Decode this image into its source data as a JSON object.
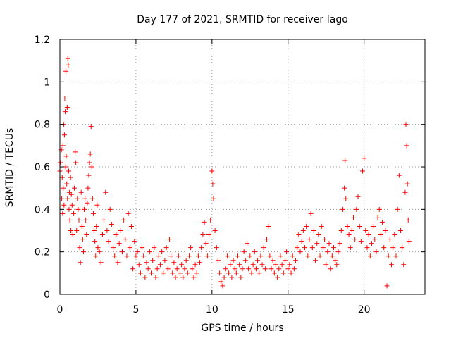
{
  "chart_data": {
    "type": "scatter",
    "title": "Day 177 of 2021, SRMTID for receiver Iago",
    "xlabel": "GPS time / hours",
    "ylabel": "SRMTID / TECUs",
    "xlim": [
      0,
      24
    ],
    "ylim": [
      0,
      1.2
    ],
    "x_ticks": [
      0,
      5,
      10,
      15,
      20
    ],
    "x_tick_labels": [
      "0",
      "5",
      "10",
      "15",
      "20"
    ],
    "y_ticks": [
      0,
      0.2,
      0.4,
      0.6,
      0.8,
      1,
      1.2
    ],
    "y_tick_labels": [
      "0",
      "0.2",
      "0.4",
      "0.6",
      "0.8",
      "1",
      "1.2"
    ],
    "grid": true,
    "marker": "plus",
    "series_color": "#ff0000",
    "series": [
      {
        "name": "SRMTID",
        "points": [
          [
            0.0,
            0.58
          ],
          [
            0.05,
            0.62
          ],
          [
            0.1,
            0.68
          ],
          [
            0.12,
            0.45
          ],
          [
            0.15,
            0.55
          ],
          [
            0.18,
            0.38
          ],
          [
            0.2,
            0.7
          ],
          [
            0.22,
            0.5
          ],
          [
            0.25,
            0.8
          ],
          [
            0.27,
            0.42
          ],
          [
            0.3,
            0.75
          ],
          [
            0.32,
            0.92
          ],
          [
            0.35,
            0.86
          ],
          [
            0.38,
            0.6
          ],
          [
            0.4,
            1.05
          ],
          [
            0.42,
            0.65
          ],
          [
            0.45,
            0.52
          ],
          [
            0.48,
            0.88
          ],
          [
            0.5,
            0.45
          ],
          [
            0.52,
            1.11
          ],
          [
            0.55,
            1.08
          ],
          [
            0.58,
            0.58
          ],
          [
            0.6,
            0.4
          ],
          [
            0.62,
            0.48
          ],
          [
            0.65,
            0.35
          ],
          [
            0.7,
            0.55
          ],
          [
            0.72,
            0.3
          ],
          [
            0.75,
            0.47
          ],
          [
            0.8,
            0.42
          ],
          [
            0.85,
            0.28
          ],
          [
            0.9,
            0.38
          ],
          [
            0.95,
            0.5
          ],
          [
            1.0,
            0.67
          ],
          [
            1.05,
            0.62
          ],
          [
            1.1,
            0.3
          ],
          [
            1.15,
            0.45
          ],
          [
            1.2,
            0.4
          ],
          [
            1.25,
            0.35
          ],
          [
            1.3,
            0.22
          ],
          [
            1.35,
            0.15
          ],
          [
            1.4,
            0.48
          ],
          [
            1.45,
            0.32
          ],
          [
            1.5,
            0.26
          ],
          [
            1.55,
            0.2
          ],
          [
            1.6,
            0.4
          ],
          [
            1.65,
            0.45
          ],
          [
            1.7,
            0.35
          ],
          [
            1.75,
            0.28
          ],
          [
            1.8,
            0.43
          ],
          [
            1.85,
            0.5
          ],
          [
            1.9,
            0.56
          ],
          [
            1.95,
            0.62
          ],
          [
            2.0,
            0.66
          ],
          [
            2.05,
            0.79
          ],
          [
            2.1,
            0.6
          ],
          [
            2.15,
            0.45
          ],
          [
            2.2,
            0.38
          ],
          [
            2.25,
            0.3
          ],
          [
            2.3,
            0.25
          ],
          [
            2.35,
            0.18
          ],
          [
            2.4,
            0.32
          ],
          [
            2.45,
            0.42
          ],
          [
            2.5,
            0.22
          ],
          [
            2.6,
            0.2
          ],
          [
            2.7,
            0.15
          ],
          [
            2.8,
            0.28
          ],
          [
            2.9,
            0.35
          ],
          [
            3.0,
            0.48
          ],
          [
            3.1,
            0.3
          ],
          [
            3.2,
            0.25
          ],
          [
            3.3,
            0.4
          ],
          [
            3.4,
            0.33
          ],
          [
            3.5,
            0.22
          ],
          [
            3.6,
            0.18
          ],
          [
            3.7,
            0.28
          ],
          [
            3.8,
            0.15
          ],
          [
            3.9,
            0.24
          ],
          [
            4.0,
            0.3
          ],
          [
            4.1,
            0.2
          ],
          [
            4.2,
            0.35
          ],
          [
            4.3,
            0.26
          ],
          [
            4.4,
            0.18
          ],
          [
            4.5,
            0.38
          ],
          [
            4.6,
            0.22
          ],
          [
            4.7,
            0.32
          ],
          [
            4.8,
            0.12
          ],
          [
            4.9,
            0.25
          ],
          [
            5.0,
            0.18
          ],
          [
            5.1,
            0.2
          ],
          [
            5.2,
            0.14
          ],
          [
            5.3,
            0.1
          ],
          [
            5.4,
            0.22
          ],
          [
            5.5,
            0.18
          ],
          [
            5.6,
            0.08
          ],
          [
            5.7,
            0.15
          ],
          [
            5.8,
            0.12
          ],
          [
            5.9,
            0.2
          ],
          [
            6.0,
            0.1
          ],
          [
            6.1,
            0.16
          ],
          [
            6.2,
            0.22
          ],
          [
            6.3,
            0.08
          ],
          [
            6.4,
            0.12
          ],
          [
            6.5,
            0.18
          ],
          [
            6.6,
            0.14
          ],
          [
            6.7,
            0.2
          ],
          [
            6.8,
            0.1
          ],
          [
            6.9,
            0.16
          ],
          [
            7.0,
            0.22
          ],
          [
            7.1,
            0.12
          ],
          [
            7.2,
            0.26
          ],
          [
            7.3,
            0.18
          ],
          [
            7.4,
            0.1
          ],
          [
            7.5,
            0.15
          ],
          [
            7.6,
            0.08
          ],
          [
            7.7,
            0.12
          ],
          [
            7.8,
            0.18
          ],
          [
            7.9,
            0.1
          ],
          [
            8.0,
            0.14
          ],
          [
            8.1,
            0.08
          ],
          [
            8.2,
            0.12
          ],
          [
            8.3,
            0.16
          ],
          [
            8.4,
            0.1
          ],
          [
            8.5,
            0.18
          ],
          [
            8.6,
            0.22
          ],
          [
            8.7,
            0.12
          ],
          [
            8.8,
            0.08
          ],
          [
            8.9,
            0.14
          ],
          [
            9.0,
            0.1
          ],
          [
            9.1,
            0.18
          ],
          [
            9.2,
            0.15
          ],
          [
            9.3,
            0.22
          ],
          [
            9.4,
            0.28
          ],
          [
            9.5,
            0.34
          ],
          [
            9.6,
            0.24
          ],
          [
            9.7,
            0.18
          ],
          [
            9.8,
            0.28
          ],
          [
            9.9,
            0.35
          ],
          [
            10.0,
            0.58
          ],
          [
            10.05,
            0.52
          ],
          [
            10.1,
            0.45
          ],
          [
            10.2,
            0.3
          ],
          [
            10.3,
            0.22
          ],
          [
            10.4,
            0.16
          ],
          [
            10.5,
            0.1
          ],
          [
            10.6,
            0.06
          ],
          [
            10.7,
            0.04
          ],
          [
            10.8,
            0.08
          ],
          [
            10.9,
            0.12
          ],
          [
            11.0,
            0.18
          ],
          [
            11.1,
            0.1
          ],
          [
            11.2,
            0.14
          ],
          [
            11.3,
            0.08
          ],
          [
            11.4,
            0.16
          ],
          [
            11.5,
            0.12
          ],
          [
            11.6,
            0.1
          ],
          [
            11.7,
            0.18
          ],
          [
            11.8,
            0.14
          ],
          [
            11.9,
            0.08
          ],
          [
            12.0,
            0.12
          ],
          [
            12.1,
            0.2
          ],
          [
            12.2,
            0.16
          ],
          [
            12.3,
            0.24
          ],
          [
            12.4,
            0.12
          ],
          [
            12.5,
            0.18
          ],
          [
            12.6,
            0.1
          ],
          [
            12.7,
            0.14
          ],
          [
            12.8,
            0.2
          ],
          [
            12.9,
            0.12
          ],
          [
            13.0,
            0.16
          ],
          [
            13.1,
            0.1
          ],
          [
            13.2,
            0.18
          ],
          [
            13.3,
            0.14
          ],
          [
            13.4,
            0.22
          ],
          [
            13.5,
            0.12
          ],
          [
            13.6,
            0.26
          ],
          [
            13.7,
            0.32
          ],
          [
            13.8,
            0.18
          ],
          [
            13.9,
            0.12
          ],
          [
            14.0,
            0.16
          ],
          [
            14.1,
            0.1
          ],
          [
            14.2,
            0.14
          ],
          [
            14.3,
            0.08
          ],
          [
            14.4,
            0.12
          ],
          [
            14.5,
            0.18
          ],
          [
            14.6,
            0.14
          ],
          [
            14.7,
            0.1
          ],
          [
            14.8,
            0.16
          ],
          [
            14.9,
            0.2
          ],
          [
            15.0,
            0.12
          ],
          [
            15.1,
            0.14
          ],
          [
            15.2,
            0.1
          ],
          [
            15.3,
            0.18
          ],
          [
            15.4,
            0.12
          ],
          [
            15.5,
            0.16
          ],
          [
            15.6,
            0.22
          ],
          [
            15.7,
            0.28
          ],
          [
            15.8,
            0.2
          ],
          [
            15.9,
            0.25
          ],
          [
            16.0,
            0.3
          ],
          [
            16.1,
            0.22
          ],
          [
            16.2,
            0.32
          ],
          [
            16.3,
            0.18
          ],
          [
            16.4,
            0.26
          ],
          [
            16.5,
            0.38
          ],
          [
            16.6,
            0.22
          ],
          [
            16.7,
            0.3
          ],
          [
            16.8,
            0.16
          ],
          [
            16.9,
            0.24
          ],
          [
            17.0,
            0.28
          ],
          [
            17.1,
            0.18
          ],
          [
            17.2,
            0.32
          ],
          [
            17.3,
            0.22
          ],
          [
            17.4,
            0.26
          ],
          [
            17.5,
            0.14
          ],
          [
            17.6,
            0.2
          ],
          [
            17.7,
            0.24
          ],
          [
            17.8,
            0.12
          ],
          [
            17.9,
            0.18
          ],
          [
            18.0,
            0.22
          ],
          [
            18.1,
            0.16
          ],
          [
            18.2,
            0.14
          ],
          [
            18.3,
            0.2
          ],
          [
            18.4,
            0.24
          ],
          [
            18.5,
            0.3
          ],
          [
            18.6,
            0.4
          ],
          [
            18.7,
            0.5
          ],
          [
            18.75,
            0.63
          ],
          [
            18.8,
            0.45
          ],
          [
            18.9,
            0.32
          ],
          [
            19.0,
            0.28
          ],
          [
            19.1,
            0.22
          ],
          [
            19.2,
            0.3
          ],
          [
            19.3,
            0.36
          ],
          [
            19.4,
            0.26
          ],
          [
            19.5,
            0.4
          ],
          [
            19.6,
            0.46
          ],
          [
            19.7,
            0.32
          ],
          [
            19.8,
            0.25
          ],
          [
            19.9,
            0.58
          ],
          [
            20.0,
            0.64
          ],
          [
            20.1,
            0.3
          ],
          [
            20.2,
            0.22
          ],
          [
            20.3,
            0.28
          ],
          [
            20.4,
            0.18
          ],
          [
            20.5,
            0.24
          ],
          [
            20.6,
            0.32
          ],
          [
            20.7,
            0.26
          ],
          [
            20.8,
            0.2
          ],
          [
            20.9,
            0.36
          ],
          [
            21.0,
            0.4
          ],
          [
            21.1,
            0.28
          ],
          [
            21.2,
            0.34
          ],
          [
            21.3,
            0.22
          ],
          [
            21.4,
            0.3
          ],
          [
            21.5,
            0.04
          ],
          [
            21.6,
            0.18
          ],
          [
            21.7,
            0.26
          ],
          [
            21.8,
            0.14
          ],
          [
            21.9,
            0.22
          ],
          [
            22.0,
            0.28
          ],
          [
            22.1,
            0.18
          ],
          [
            22.2,
            0.4
          ],
          [
            22.3,
            0.56
          ],
          [
            22.4,
            0.3
          ],
          [
            22.5,
            0.22
          ],
          [
            22.6,
            0.14
          ],
          [
            22.7,
            0.48
          ],
          [
            22.75,
            0.8
          ],
          [
            22.8,
            0.7
          ],
          [
            22.85,
            0.52
          ],
          [
            22.9,
            0.35
          ],
          [
            22.95,
            0.25
          ]
        ]
      }
    ]
  }
}
